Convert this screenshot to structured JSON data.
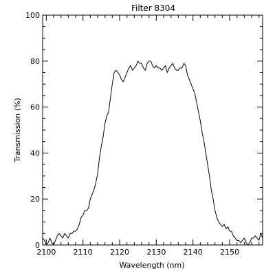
{
  "chart_data": {
    "type": "line",
    "title": "Filter 8304",
    "xlabel": "Wavelength (nm)",
    "ylabel": "Transmission (%)",
    "xlim": [
      2099,
      2159
    ],
    "ylim": [
      0,
      100
    ],
    "xticks": [
      2100,
      2110,
      2120,
      2130,
      2140,
      2150
    ],
    "yticks": [
      0,
      20,
      40,
      60,
      80,
      100
    ],
    "grid": false,
    "legend": "none",
    "colors": {
      "line": "#000000",
      "axes": "#000000",
      "background": "#ffffff"
    },
    "series": [
      {
        "x": [
          2099.0,
          2099.5,
          2100.0,
          2100.5,
          2101.0,
          2101.5,
          2102.0,
          2102.5,
          2103.0,
          2103.5,
          2104.0,
          2104.5,
          2105.0,
          2105.5,
          2106.0,
          2106.5,
          2107.0,
          2107.5,
          2108.0,
          2108.5,
          2109.0,
          2109.5,
          2110.0,
          2110.5,
          2111.0,
          2111.5,
          2112.0,
          2112.5,
          2113.0,
          2113.5,
          2114.0,
          2114.5,
          2115.0,
          2115.5,
          2116.0,
          2116.5,
          2117.0,
          2117.5,
          2118.0,
          2118.5,
          2119.0,
          2119.5,
          2120.0,
          2120.5,
          2121.0,
          2121.5,
          2122.0,
          2122.5,
          2123.0,
          2123.5,
          2124.0,
          2124.5,
          2125.0,
          2125.5,
          2126.0,
          2126.5,
          2127.0,
          2127.5,
          2128.0,
          2128.5,
          2129.0,
          2129.5,
          2130.0,
          2130.5,
          2131.0,
          2131.5,
          2132.0,
          2132.5,
          2133.0,
          2133.5,
          2134.0,
          2134.5,
          2135.0,
          2135.5,
          2136.0,
          2136.5,
          2137.0,
          2137.5,
          2138.0,
          2138.5,
          2139.0,
          2139.5,
          2140.0,
          2140.5,
          2141.0,
          2141.5,
          2142.0,
          2142.5,
          2143.0,
          2143.5,
          2144.0,
          2144.5,
          2145.0,
          2145.5,
          2146.0,
          2146.5,
          2147.0,
          2147.5,
          2148.0,
          2148.5,
          2149.0,
          2149.5,
          2150.0,
          2150.5,
          2151.0,
          2151.5,
          2152.0,
          2152.5,
          2153.0,
          2153.5,
          2154.0,
          2154.5,
          2155.0,
          2155.5,
          2156.0,
          2156.5,
          2157.0,
          2157.5,
          2158.0,
          2158.5,
          2159.0
        ],
        "y": [
          3,
          2,
          0,
          1,
          3,
          1,
          0,
          2,
          4,
          5,
          4,
          3,
          5,
          4,
          3,
          5,
          5,
          6,
          6,
          7,
          9,
          12,
          13,
          15,
          15,
          16,
          20,
          22,
          24,
          27,
          31,
          38,
          43,
          47,
          53,
          56,
          58,
          64,
          70,
          75,
          76,
          75,
          74,
          72,
          71,
          73,
          75,
          77,
          78,
          76,
          77,
          78,
          80,
          79,
          79,
          77,
          76,
          79,
          80,
          80,
          78,
          77,
          78,
          77,
          77,
          76,
          77,
          78,
          75,
          77,
          78,
          79,
          77,
          76,
          76,
          77,
          77,
          79,
          78,
          74,
          72,
          70,
          68,
          66,
          62,
          58,
          54,
          49,
          45,
          40,
          35,
          30,
          24,
          20,
          15,
          12,
          10,
          9,
          8,
          9,
          7,
          8,
          6,
          6,
          4,
          3,
          2,
          2,
          1,
          2,
          3,
          1,
          0,
          1,
          3,
          3,
          4,
          3,
          2,
          5,
          3
        ]
      }
    ]
  }
}
